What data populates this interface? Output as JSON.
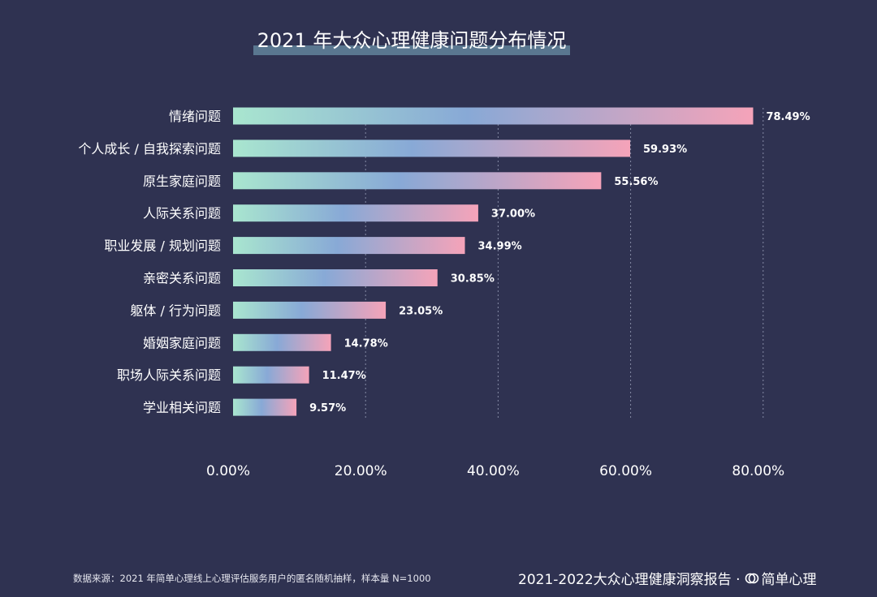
{
  "title": "2021 年大众心理健康问题分布情况",
  "chart_data": {
    "type": "bar",
    "orientation": "horizontal",
    "title": "2021 年大众心理健康问题分布情况",
    "categories": [
      "情绪问题",
      "个人成长 / 自我探索问题",
      "原生家庭问题",
      "人际关系问题",
      "职业发展 / 规划问题",
      "亲密关系问题",
      "躯体 / 行为问题",
      "婚姻家庭问题",
      "职场人际关系问题",
      "学业相关问题"
    ],
    "values": [
      78.49,
      59.93,
      55.56,
      37.0,
      34.99,
      30.85,
      23.05,
      14.78,
      11.47,
      9.57
    ],
    "value_labels": [
      "78.49%",
      "59.93%",
      "55.56%",
      "37.00%",
      "34.99%",
      "30.85%",
      "23.05%",
      "14.78%",
      "11.47%",
      "9.57%"
    ],
    "xlim": [
      0,
      80
    ],
    "x_ticks": [
      0,
      20,
      40,
      60,
      80
    ],
    "x_tick_labels": [
      "0.00%",
      "20.00%",
      "40.00%",
      "60.00%",
      "80.00%"
    ],
    "grid": "vertical dashed",
    "gradient": [
      "#a9e6cf",
      "#88a9d6",
      "#f5a3b9"
    ]
  },
  "footer": {
    "source": "数据来源：2021 年简单心理线上心理评估服务用户的匿名随机抽样，样本量 N=1000",
    "report": "2021-2022大众心理健康洞察报告 ·",
    "brand": "简单心理",
    "brand_icon": "brand-logo-icon"
  }
}
